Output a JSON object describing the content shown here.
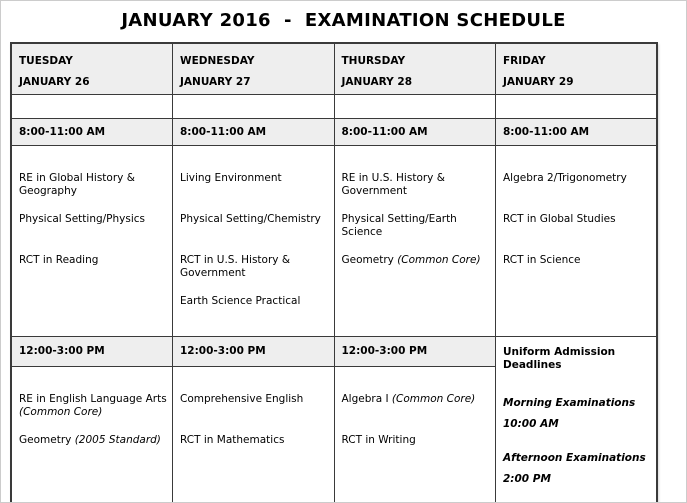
{
  "page": {
    "title": "JANUARY 2016  -  EXAMINATION SCHEDULE"
  },
  "table": {
    "days": [
      {
        "day": "TUESDAY",
        "date": "JANUARY 26"
      },
      {
        "day": "WEDNESDAY",
        "date": "JANUARY 27"
      },
      {
        "day": "THURSDAY",
        "date": "JANUARY 28"
      },
      {
        "day": "FRIDAY",
        "date": "JANUARY 29"
      }
    ],
    "morning_session": {
      "time": "8:00-11:00 AM",
      "columns": [
        {
          "exams": [
            {
              "name": "RE in Global History & Geography"
            },
            {
              "name": "Physical Setting/Physics"
            },
            {
              "name": "RCT in Reading"
            }
          ]
        },
        {
          "exams": [
            {
              "name": "Living Environment"
            },
            {
              "name": "Physical Setting/Chemistry"
            },
            {
              "name": "RCT in U.S. History & Government"
            },
            {
              "name": "Earth Science Practical"
            }
          ]
        },
        {
          "exams": [
            {
              "name": "RE in U.S. History & Government"
            },
            {
              "name": "Physical Setting/Earth Science"
            },
            {
              "name": "Geometry",
              "note": "(Common Core)"
            }
          ]
        },
        {
          "exams": [
            {
              "name": "Algebra 2/Trigonometry"
            },
            {
              "name": "RCT in Global Studies"
            },
            {
              "name": "RCT in Science"
            }
          ]
        }
      ]
    },
    "afternoon_session": {
      "time": "12:00-3:00 PM",
      "columns": [
        {
          "exams": [
            {
              "name": "RE in English Language Arts",
              "note": "(Common Core)",
              "note_on_new_line": true
            },
            {
              "name": "Geometry",
              "note": "(2005 Standard)"
            }
          ]
        },
        {
          "exams": [
            {
              "name": "Comprehensive English"
            },
            {
              "name": "RCT in Mathematics"
            }
          ]
        },
        {
          "exams": [
            {
              "name": "Algebra I",
              "note": "(Common Core)"
            },
            {
              "name": "RCT in Writing"
            }
          ]
        }
      ]
    },
    "friday_deadlines": {
      "title": "Uniform Admission Deadlines",
      "entries": [
        {
          "label": "Morning Examinations",
          "time": "10:00 AM"
        },
        {
          "label": "Afternoon Examinations",
          "time": "2:00 PM"
        }
      ]
    }
  },
  "colors": {
    "header_background": "#eeeeee",
    "grid_border": "#3a3a3a",
    "text": "#000000"
  }
}
